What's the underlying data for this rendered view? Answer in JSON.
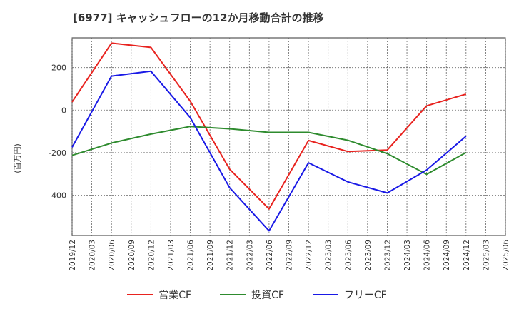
{
  "chart_data": {
    "type": "line",
    "title": "[6977]  キャッシュフローの12か月移動合計の推移",
    "ylabel": "(百万円)",
    "xlabel": "",
    "ylim": [
      -590,
      340
    ],
    "yticks": [
      -400,
      -200,
      0,
      200
    ],
    "grid": true,
    "legend_position": "bottom-center",
    "categories": [
      "2019/12",
      "2020/03",
      "2020/06",
      "2020/09",
      "2020/12",
      "2021/03",
      "2021/06",
      "2021/09",
      "2021/12",
      "2022/03",
      "2022/06",
      "2022/09",
      "2022/12",
      "2023/03",
      "2023/06",
      "2023/09",
      "2023/12",
      "2024/03",
      "2024/06",
      "2024/09",
      "2024/12",
      "2025/03",
      "2025/06"
    ],
    "series": [
      {
        "name": "営業CF",
        "color": "#e8231f",
        "values": [
          38,
          null,
          315,
          null,
          295,
          null,
          42,
          null,
          -278,
          null,
          -465,
          null,
          -143,
          null,
          -195,
          null,
          -188,
          null,
          20,
          null,
          75,
          null,
          null
        ]
      },
      {
        "name": "投資CF",
        "color": "#2e8b2e",
        "values": [
          -213,
          null,
          -155,
          null,
          -113,
          null,
          -77,
          null,
          -88,
          null,
          -105,
          null,
          -105,
          null,
          -142,
          null,
          -205,
          null,
          -302,
          null,
          -200,
          null,
          null
        ]
      },
      {
        "name": "フリーCF",
        "color": "#1919e6",
        "values": [
          -175,
          null,
          160,
          null,
          183,
          null,
          -35,
          null,
          -365,
          null,
          -568,
          null,
          -248,
          null,
          -338,
          null,
          -390,
          null,
          -282,
          null,
          -123,
          null,
          null
        ]
      }
    ]
  }
}
